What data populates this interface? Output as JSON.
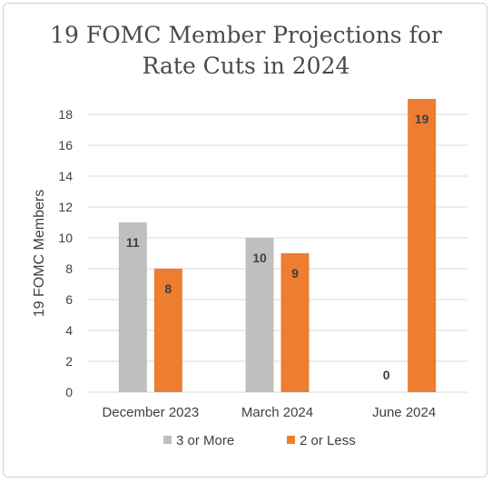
{
  "chart_data": {
    "type": "bar",
    "title_lines": [
      "19 FOMC Member Projections for",
      "Rate Cuts in 2024"
    ],
    "ylabel": "19 FOMC Members",
    "xlabel": "",
    "categories": [
      "December 2023",
      "March 2024",
      "June 2024"
    ],
    "series": [
      {
        "name": "3 or More",
        "color": "#bfbfbf",
        "values": [
          11,
          10,
          0
        ]
      },
      {
        "name": "2 or Less",
        "color": "#ed7d31",
        "values": [
          8,
          9,
          19
        ]
      }
    ],
    "ylim": [
      0,
      18
    ],
    "yticks": [
      0,
      2,
      4,
      6,
      8,
      10,
      12,
      14,
      16,
      18
    ],
    "grid": true,
    "legend": "bottom"
  }
}
